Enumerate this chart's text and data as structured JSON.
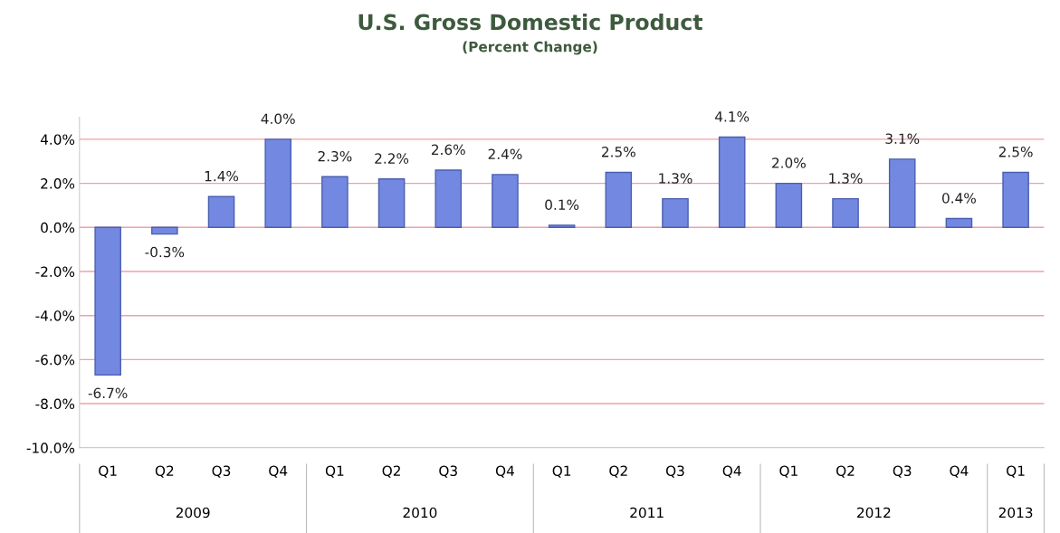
{
  "chart_data": {
    "type": "bar",
    "title": "U.S. Gross Domestic Product",
    "subtitle": "(Percent Change)",
    "categories": [
      "Q1",
      "Q2",
      "Q3",
      "Q4",
      "Q1",
      "Q2",
      "Q3",
      "Q4",
      "Q1",
      "Q2",
      "Q3",
      "Q4",
      "Q1",
      "Q2",
      "Q3",
      "Q4",
      "Q1"
    ],
    "values": [
      -6.7,
      -0.3,
      1.4,
      4.0,
      2.3,
      2.2,
      2.6,
      2.4,
      0.1,
      2.5,
      1.3,
      4.1,
      2.0,
      1.3,
      3.1,
      0.4,
      2.5
    ],
    "value_labels": [
      "-6.7%",
      "-0.3%",
      "1.4%",
      "4.0%",
      "2.3%",
      "2.2%",
      "2.6%",
      "2.4%",
      "0.1%",
      "2.5%",
      "1.3%",
      "4.1%",
      "2.0%",
      "1.3%",
      "3.1%",
      "0.4%",
      "2.5%"
    ],
    "color": "#7388e0",
    "annotations": [
      "2009",
      "2010",
      "2011",
      "2012",
      "2013"
    ],
    "ylim": [
      -10,
      5
    ],
    "yticks": [
      {
        "value": -10,
        "label": "-10.0%"
      },
      {
        "value": -8,
        "label": "-8.0%"
      },
      {
        "value": -6,
        "label": "-6.0%"
      },
      {
        "value": -4,
        "label": "-4.0%"
      },
      {
        "value": -2,
        "label": "-2.0%"
      },
      {
        "value": 0,
        "label": "0.0%"
      },
      {
        "value": 2,
        "label": "2.0%"
      },
      {
        "value": 4,
        "label": "4.0%"
      }
    ],
    "grid": "y"
  }
}
